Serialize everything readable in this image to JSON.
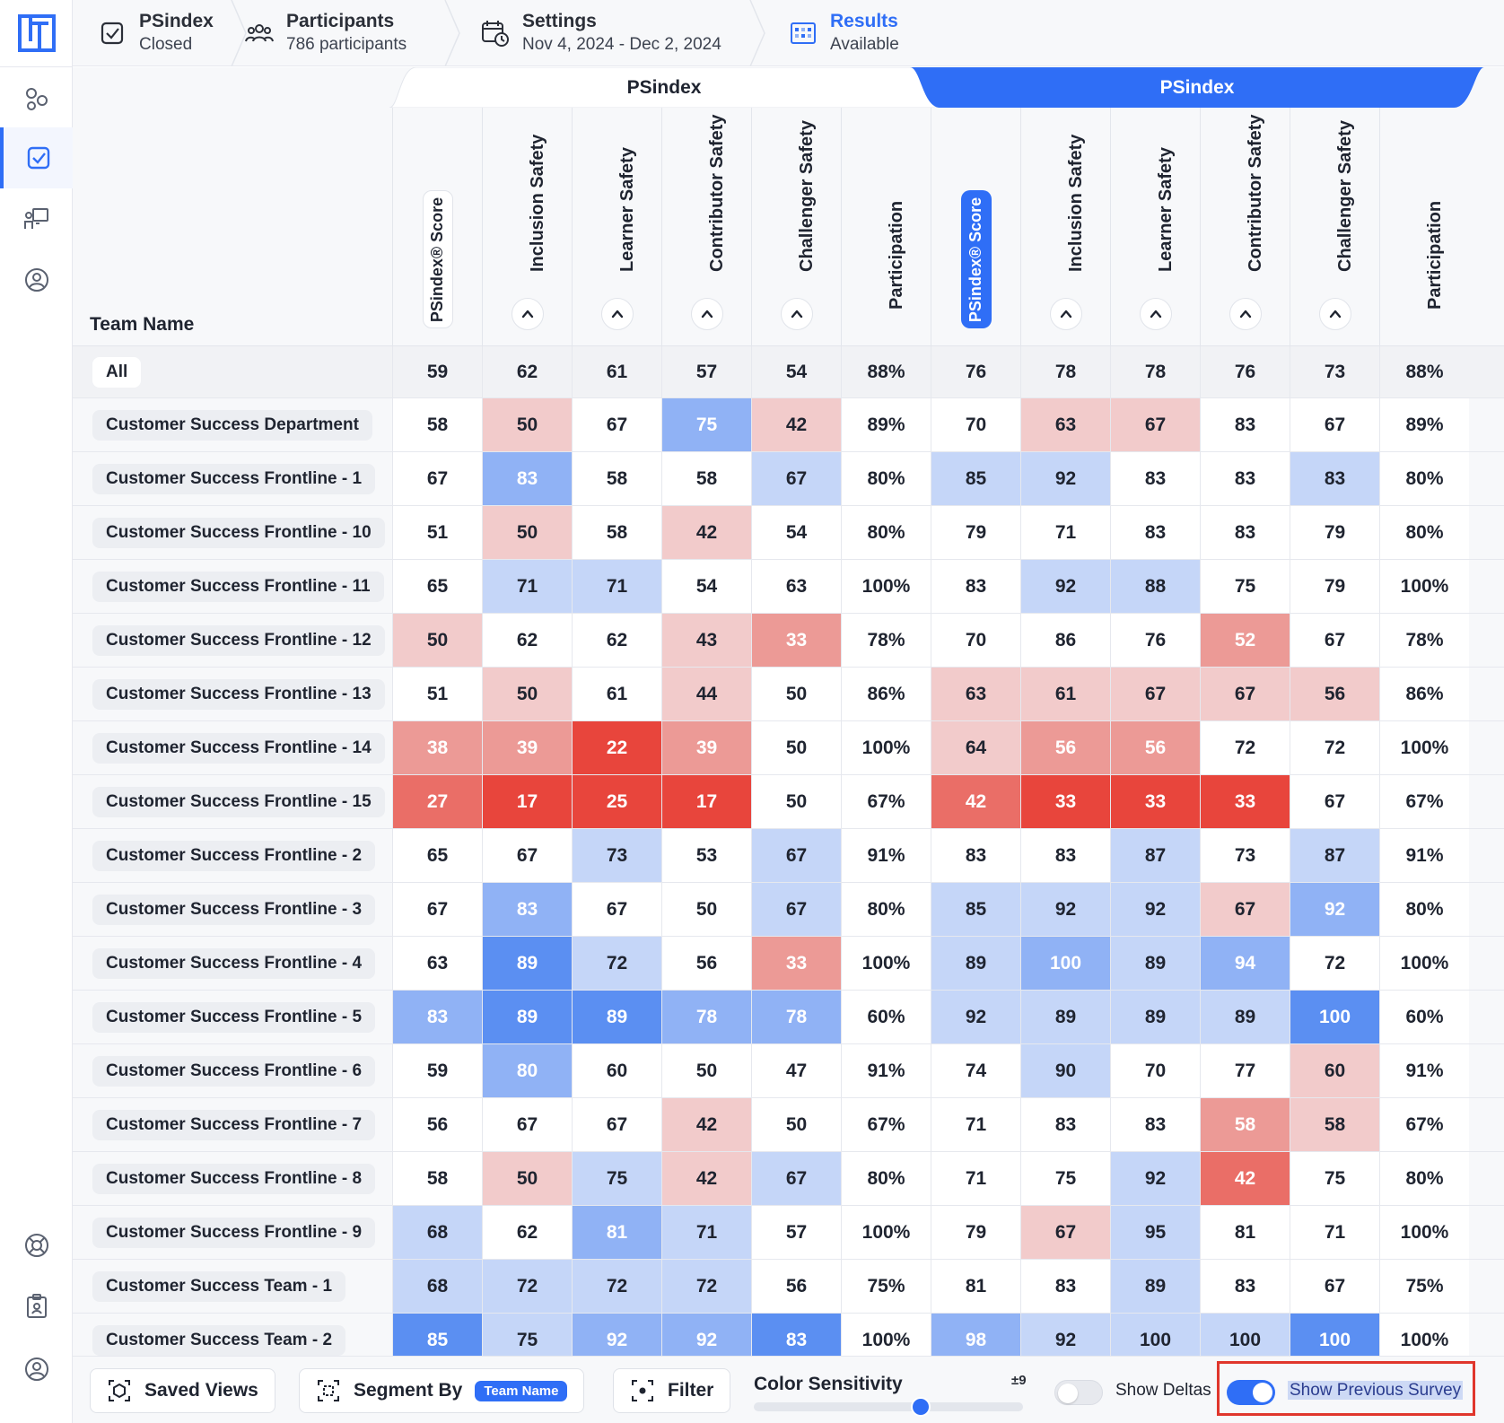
{
  "header": {
    "steps": [
      {
        "title": "PSindex",
        "sub": "Closed",
        "icon": "clipboard-check-icon"
      },
      {
        "title": "Participants",
        "sub": "786 participants",
        "icon": "users-icon"
      },
      {
        "title": "Settings",
        "sub": "Nov 4, 2024 - Dec 2, 2024",
        "icon": "calendar-clock-icon"
      },
      {
        "title": "Results",
        "sub": "Available",
        "icon": "heatmap-grid-icon"
      }
    ]
  },
  "sidebar": {
    "items": [
      {
        "icon": "apps-icon",
        "active": false
      },
      {
        "icon": "survey-check-icon",
        "active": true
      },
      {
        "icon": "presentation-icon",
        "active": false
      },
      {
        "icon": "user-circle-icon",
        "active": false
      }
    ],
    "bottom_items": [
      {
        "icon": "help-lifebuoy-icon"
      },
      {
        "icon": "clipboard-user-icon"
      },
      {
        "icon": "profile-icon"
      }
    ]
  },
  "table": {
    "groups": [
      {
        "label": "PSindex",
        "kind": "previous"
      },
      {
        "label": "PSindex",
        "kind": "current"
      }
    ],
    "team_header": "Team Name",
    "columns": [
      "PSindex® Score",
      "Inclusion Safety",
      "Learner Safety",
      "Contributor Safety",
      "Challenger Safety",
      "Participation",
      "PSindex® Score",
      "Inclusion Safety",
      "Learner Safety",
      "Contributor Safety",
      "Challenger Safety",
      "Participation"
    ],
    "rows": [
      {
        "team": "All",
        "values": [
          "59",
          "62",
          "61",
          "57",
          "54",
          "88%",
          "76",
          "78",
          "78",
          "76",
          "73",
          "88%"
        ]
      },
      {
        "team": "Customer Success Department",
        "values": [
          "58",
          "50",
          "67",
          "75",
          "42",
          "89%",
          "70",
          "63",
          "67",
          "83",
          "67",
          "89%"
        ]
      },
      {
        "team": "Customer Success Frontline - 1",
        "values": [
          "67",
          "83",
          "58",
          "58",
          "67",
          "80%",
          "85",
          "92",
          "83",
          "83",
          "83",
          "80%"
        ]
      },
      {
        "team": "Customer Success Frontline - 10",
        "values": [
          "51",
          "50",
          "58",
          "42",
          "54",
          "80%",
          "79",
          "71",
          "83",
          "83",
          "79",
          "80%"
        ]
      },
      {
        "team": "Customer Success Frontline - 11",
        "values": [
          "65",
          "71",
          "71",
          "54",
          "63",
          "100%",
          "83",
          "92",
          "88",
          "75",
          "79",
          "100%"
        ]
      },
      {
        "team": "Customer Success Frontline - 12",
        "values": [
          "50",
          "62",
          "62",
          "43",
          "33",
          "78%",
          "70",
          "86",
          "76",
          "52",
          "67",
          "78%"
        ]
      },
      {
        "team": "Customer Success Frontline - 13",
        "values": [
          "51",
          "50",
          "61",
          "44",
          "50",
          "86%",
          "63",
          "61",
          "67",
          "67",
          "56",
          "86%"
        ]
      },
      {
        "team": "Customer Success Frontline - 14",
        "values": [
          "38",
          "39",
          "22",
          "39",
          "50",
          "100%",
          "64",
          "56",
          "56",
          "72",
          "72",
          "100%"
        ]
      },
      {
        "team": "Customer Success Frontline - 15",
        "values": [
          "27",
          "17",
          "25",
          "17",
          "50",
          "67%",
          "42",
          "33",
          "33",
          "33",
          "67",
          "67%"
        ]
      },
      {
        "team": "Customer Success Frontline - 2",
        "values": [
          "65",
          "67",
          "73",
          "53",
          "67",
          "91%",
          "83",
          "83",
          "87",
          "73",
          "87",
          "91%"
        ]
      },
      {
        "team": "Customer Success Frontline - 3",
        "values": [
          "67",
          "83",
          "67",
          "50",
          "67",
          "80%",
          "85",
          "92",
          "92",
          "67",
          "92",
          "80%"
        ]
      },
      {
        "team": "Customer Success Frontline - 4",
        "values": [
          "63",
          "89",
          "72",
          "56",
          "33",
          "100%",
          "89",
          "100",
          "89",
          "94",
          "72",
          "100%"
        ]
      },
      {
        "team": "Customer Success Frontline - 5",
        "values": [
          "83",
          "89",
          "89",
          "78",
          "78",
          "60%",
          "92",
          "89",
          "89",
          "89",
          "100",
          "60%"
        ]
      },
      {
        "team": "Customer Success Frontline - 6",
        "values": [
          "59",
          "80",
          "60",
          "50",
          "47",
          "91%",
          "74",
          "90",
          "70",
          "77",
          "60",
          "91%"
        ]
      },
      {
        "team": "Customer Success Frontline - 7",
        "values": [
          "56",
          "67",
          "67",
          "42",
          "50",
          "67%",
          "71",
          "83",
          "83",
          "58",
          "58",
          "67%"
        ]
      },
      {
        "team": "Customer Success Frontline - 8",
        "values": [
          "58",
          "50",
          "75",
          "42",
          "67",
          "80%",
          "71",
          "75",
          "92",
          "42",
          "75",
          "80%"
        ]
      },
      {
        "team": "Customer Success Frontline - 9",
        "values": [
          "68",
          "62",
          "81",
          "71",
          "57",
          "100%",
          "79",
          "67",
          "95",
          "81",
          "71",
          "100%"
        ]
      },
      {
        "team": "Customer Success Team - 1",
        "values": [
          "68",
          "72",
          "72",
          "72",
          "56",
          "75%",
          "81",
          "83",
          "89",
          "83",
          "67",
          "75%"
        ]
      },
      {
        "team": "Customer Success Team - 2",
        "values": [
          "85",
          "75",
          "92",
          "92",
          "83",
          "100%",
          "98",
          "92",
          "100",
          "100",
          "100",
          "100%"
        ]
      }
    ],
    "cell_levels": [
      [
        0,
        0,
        0,
        0,
        0,
        0,
        0,
        0,
        0,
        0,
        0,
        0
      ],
      [
        0,
        -1,
        0,
        2,
        -1,
        0,
        0,
        -1,
        -1,
        0,
        0,
        0
      ],
      [
        0,
        2,
        0,
        0,
        1,
        0,
        1,
        1,
        0,
        0,
        1,
        0
      ],
      [
        0,
        -1,
        0,
        -1,
        0,
        0,
        0,
        0,
        0,
        0,
        0,
        0
      ],
      [
        0,
        1,
        1,
        0,
        0,
        0,
        0,
        1,
        1,
        0,
        0,
        0
      ],
      [
        -1,
        0,
        0,
        -1,
        -2,
        0,
        0,
        0,
        0,
        -2,
        0,
        0
      ],
      [
        0,
        -1,
        0,
        -1,
        0,
        0,
        -1,
        -1,
        -1,
        -1,
        -1,
        0
      ],
      [
        -2,
        -2,
        -4,
        -2,
        0,
        0,
        -1,
        -2,
        -2,
        0,
        0,
        0
      ],
      [
        -3,
        -4,
        -4,
        -4,
        0,
        0,
        -3,
        -4,
        -4,
        -4,
        0,
        0
      ],
      [
        0,
        0,
        1,
        0,
        1,
        0,
        0,
        0,
        1,
        0,
        1,
        0
      ],
      [
        0,
        2,
        0,
        0,
        1,
        0,
        1,
        1,
        1,
        -1,
        2,
        0
      ],
      [
        0,
        3,
        1,
        0,
        -2,
        0,
        1,
        2,
        1,
        2,
        0,
        0
      ],
      [
        2,
        3,
        3,
        2,
        2,
        0,
        1,
        1,
        1,
        1,
        3,
        0
      ],
      [
        0,
        2,
        0,
        0,
        0,
        0,
        0,
        1,
        0,
        0,
        -1,
        0
      ],
      [
        0,
        0,
        0,
        -1,
        0,
        0,
        0,
        0,
        0,
        -2,
        -1,
        0
      ],
      [
        0,
        -1,
        1,
        -1,
        1,
        0,
        0,
        0,
        1,
        -3,
        0,
        0
      ],
      [
        1,
        0,
        2,
        1,
        0,
        0,
        0,
        -1,
        1,
        0,
        0,
        0
      ],
      [
        1,
        1,
        1,
        1,
        0,
        0,
        0,
        0,
        1,
        0,
        0,
        0
      ],
      [
        3,
        1,
        2,
        2,
        3,
        0,
        2,
        1,
        1,
        1,
        3,
        0
      ]
    ],
    "level_colors": {
      "-4": "#e8453c",
      "-3": "#ea6e67",
      "-2": "#ec9a96",
      "-1": "#f2cbcb",
      "0": "#ffffff",
      "1": "#c5d6f8",
      "2": "#90b2f5",
      "3": "#5b8ff2"
    },
    "dark_text_levels": [
      0,
      1,
      -1
    ]
  },
  "toolbar": {
    "saved_views": "Saved Views",
    "segment_by": "Segment By",
    "segment_chip": "Team Name",
    "filter": "Filter",
    "color_sensitivity": "Color Sensitivity",
    "sensitivity_value": "±9",
    "sensitivity_level": 0.62,
    "show_deltas": "Show Deltas",
    "show_deltas_on": false,
    "show_previous_survey": "Show Previous Survey",
    "show_previous_survey_on": true
  },
  "colors": {
    "accent": "#2f6ef6",
    "highlight": "#e0362c"
  }
}
